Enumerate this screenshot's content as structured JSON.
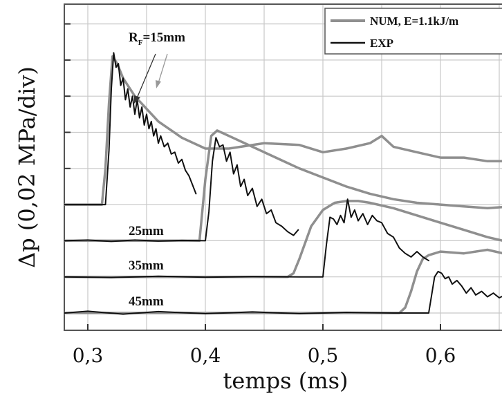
{
  "chart_data": {
    "type": "line",
    "title": "",
    "xlabel": "temps (ms)",
    "ylabel": "Δp (0,02 MPa/div)",
    "xlim": [
      0.28,
      0.67
    ],
    "ylim": [
      0,
      8.5
    ],
    "x_ticks": [
      0.3,
      0.4,
      0.5,
      0.6
    ],
    "x_tick_labels": [
      "0,3",
      "0,4",
      "0,5",
      "0,6"
    ],
    "y_tick_values": [
      0,
      1,
      2,
      3,
      4,
      5,
      6,
      7,
      8
    ],
    "grid": true,
    "legend": {
      "placement": "top-right",
      "entries": [
        {
          "label": "NUM, E=1.1kJ/m",
          "color": "#8f8f8f"
        },
        {
          "label": "EXP",
          "color": "#111111"
        }
      ]
    },
    "annotations": [
      {
        "text_main": "R",
        "text_sub": "F",
        "text_rest": "=15mm"
      },
      {
        "text": "25mm"
      },
      {
        "text": "35mm"
      },
      {
        "text": "45mm"
      }
    ],
    "series": [
      {
        "type": "NUM",
        "group": "15mm",
        "color": "#8f8f8f",
        "x": [
          0.28,
          0.3,
          0.312,
          0.315,
          0.318,
          0.321,
          0.325,
          0.33,
          0.34,
          0.36,
          0.38,
          0.4,
          0.42,
          0.45,
          0.48,
          0.5,
          0.52,
          0.54,
          0.55,
          0.56,
          0.58,
          0.6,
          0.62,
          0.64,
          0.66,
          0.67
        ],
        "y": [
          3,
          3,
          3,
          4.0,
          5.8,
          7.1,
          6.9,
          6.5,
          6.0,
          5.3,
          4.85,
          4.55,
          4.55,
          4.7,
          4.65,
          4.45,
          4.55,
          4.7,
          4.9,
          4.6,
          4.45,
          4.3,
          4.3,
          4.2,
          4.2,
          4.25
        ]
      },
      {
        "type": "NUM",
        "group": "25mm",
        "color": "#8f8f8f",
        "x": [
          0.28,
          0.39,
          0.395,
          0.4,
          0.405,
          0.41,
          0.42,
          0.44,
          0.46,
          0.48,
          0.5,
          0.52,
          0.54,
          0.56,
          0.58,
          0.6,
          0.62,
          0.64,
          0.66,
          0.67
        ],
        "y": [
          2,
          2,
          2.0,
          3.7,
          4.9,
          5.05,
          4.9,
          4.6,
          4.3,
          4.0,
          3.75,
          3.5,
          3.3,
          3.15,
          3.05,
          3.0,
          2.95,
          2.9,
          2.95,
          3.0
        ]
      },
      {
        "type": "NUM",
        "group": "35mm",
        "color": "#8f8f8f",
        "x": [
          0.28,
          0.47,
          0.475,
          0.48,
          0.49,
          0.5,
          0.51,
          0.52,
          0.53,
          0.54,
          0.56,
          0.58,
          0.6,
          0.62,
          0.64,
          0.66,
          0.67
        ],
        "y": [
          1,
          1,
          1.1,
          1.5,
          2.4,
          2.85,
          3.05,
          3.1,
          3.1,
          3.05,
          2.9,
          2.7,
          2.5,
          2.3,
          2.1,
          1.95,
          1.85
        ]
      },
      {
        "type": "NUM",
        "group": "45mm",
        "color": "#8f8f8f",
        "x": [
          0.28,
          0.565,
          0.57,
          0.575,
          0.58,
          0.585,
          0.59,
          0.6,
          0.62,
          0.64,
          0.66,
          0.67
        ],
        "y": [
          0,
          0,
          0.15,
          0.6,
          1.15,
          1.5,
          1.6,
          1.7,
          1.65,
          1.75,
          1.6,
          1.6
        ]
      },
      {
        "type": "EXP",
        "group": "15mm",
        "color": "#111111",
        "x": [
          0.28,
          0.315,
          0.318,
          0.32,
          0.322,
          0.324,
          0.326,
          0.328,
          0.33,
          0.332,
          0.334,
          0.336,
          0.338,
          0.34,
          0.342,
          0.344,
          0.346,
          0.348,
          0.35,
          0.352,
          0.354,
          0.356,
          0.358,
          0.36,
          0.362,
          0.365,
          0.368,
          0.371,
          0.374,
          0.377,
          0.38,
          0.383,
          0.386,
          0.389,
          0.392
        ],
        "y": [
          3,
          3,
          4.5,
          6.2,
          7.2,
          6.8,
          6.9,
          6.3,
          6.5,
          5.9,
          6.2,
          5.7,
          6.0,
          5.5,
          5.9,
          5.4,
          5.7,
          5.2,
          5.5,
          5.1,
          5.3,
          4.9,
          5.1,
          4.7,
          4.9,
          4.6,
          4.7,
          4.4,
          4.45,
          4.15,
          4.25,
          3.95,
          3.8,
          3.55,
          3.3
        ]
      },
      {
        "type": "EXP",
        "group": "25mm",
        "color": "#111111",
        "x": [
          0.28,
          0.3,
          0.32,
          0.34,
          0.36,
          0.38,
          0.4,
          0.403,
          0.406,
          0.409,
          0.412,
          0.415,
          0.418,
          0.421,
          0.424,
          0.427,
          0.43,
          0.433,
          0.436,
          0.44,
          0.444,
          0.448,
          0.452,
          0.456,
          0.46,
          0.465,
          0.47,
          0.475,
          0.479
        ],
        "y": [
          2,
          2.02,
          1.98,
          2.02,
          1.99,
          2.01,
          2.0,
          2.8,
          4.2,
          4.85,
          4.6,
          4.65,
          4.2,
          4.45,
          3.85,
          4.1,
          3.5,
          3.7,
          3.25,
          3.45,
          2.95,
          3.15,
          2.75,
          2.85,
          2.5,
          2.4,
          2.25,
          2.15,
          2.3
        ]
      },
      {
        "type": "EXP",
        "group": "35mm",
        "color": "#111111",
        "x": [
          0.28,
          0.32,
          0.36,
          0.4,
          0.44,
          0.48,
          0.5,
          0.503,
          0.506,
          0.509,
          0.512,
          0.515,
          0.518,
          0.521,
          0.524,
          0.527,
          0.53,
          0.534,
          0.538,
          0.542,
          0.546,
          0.55,
          0.555,
          0.56,
          0.565,
          0.57,
          0.575,
          0.58,
          0.585,
          0.59
        ],
        "y": [
          1,
          0.98,
          1.02,
          0.99,
          1.01,
          1.0,
          1.0,
          1.9,
          2.65,
          2.6,
          2.45,
          2.7,
          2.5,
          3.15,
          2.65,
          2.85,
          2.55,
          2.75,
          2.45,
          2.7,
          2.55,
          2.5,
          2.2,
          2.1,
          1.8,
          1.65,
          1.55,
          1.7,
          1.55,
          1.45
        ]
      },
      {
        "type": "EXP",
        "group": "45mm",
        "color": "#111111",
        "x": [
          0.28,
          0.3,
          0.33,
          0.36,
          0.4,
          0.44,
          0.48,
          0.52,
          0.56,
          0.59,
          0.592,
          0.595,
          0.598,
          0.601,
          0.604,
          0.607,
          0.61,
          0.614,
          0.618,
          0.622,
          0.626,
          0.63,
          0.635,
          0.64,
          0.645,
          0.65,
          0.655,
          0.66,
          0.665,
          0.67
        ],
        "y": [
          0,
          0.05,
          -0.03,
          0.04,
          -0.02,
          0.03,
          -0.02,
          0.02,
          0.0,
          0.0,
          0.4,
          1.0,
          1.15,
          1.1,
          0.95,
          1.0,
          0.8,
          0.9,
          0.75,
          0.55,
          0.7,
          0.5,
          0.6,
          0.45,
          0.55,
          0.42,
          0.5,
          0.35,
          0.3,
          0.3
        ]
      }
    ]
  }
}
